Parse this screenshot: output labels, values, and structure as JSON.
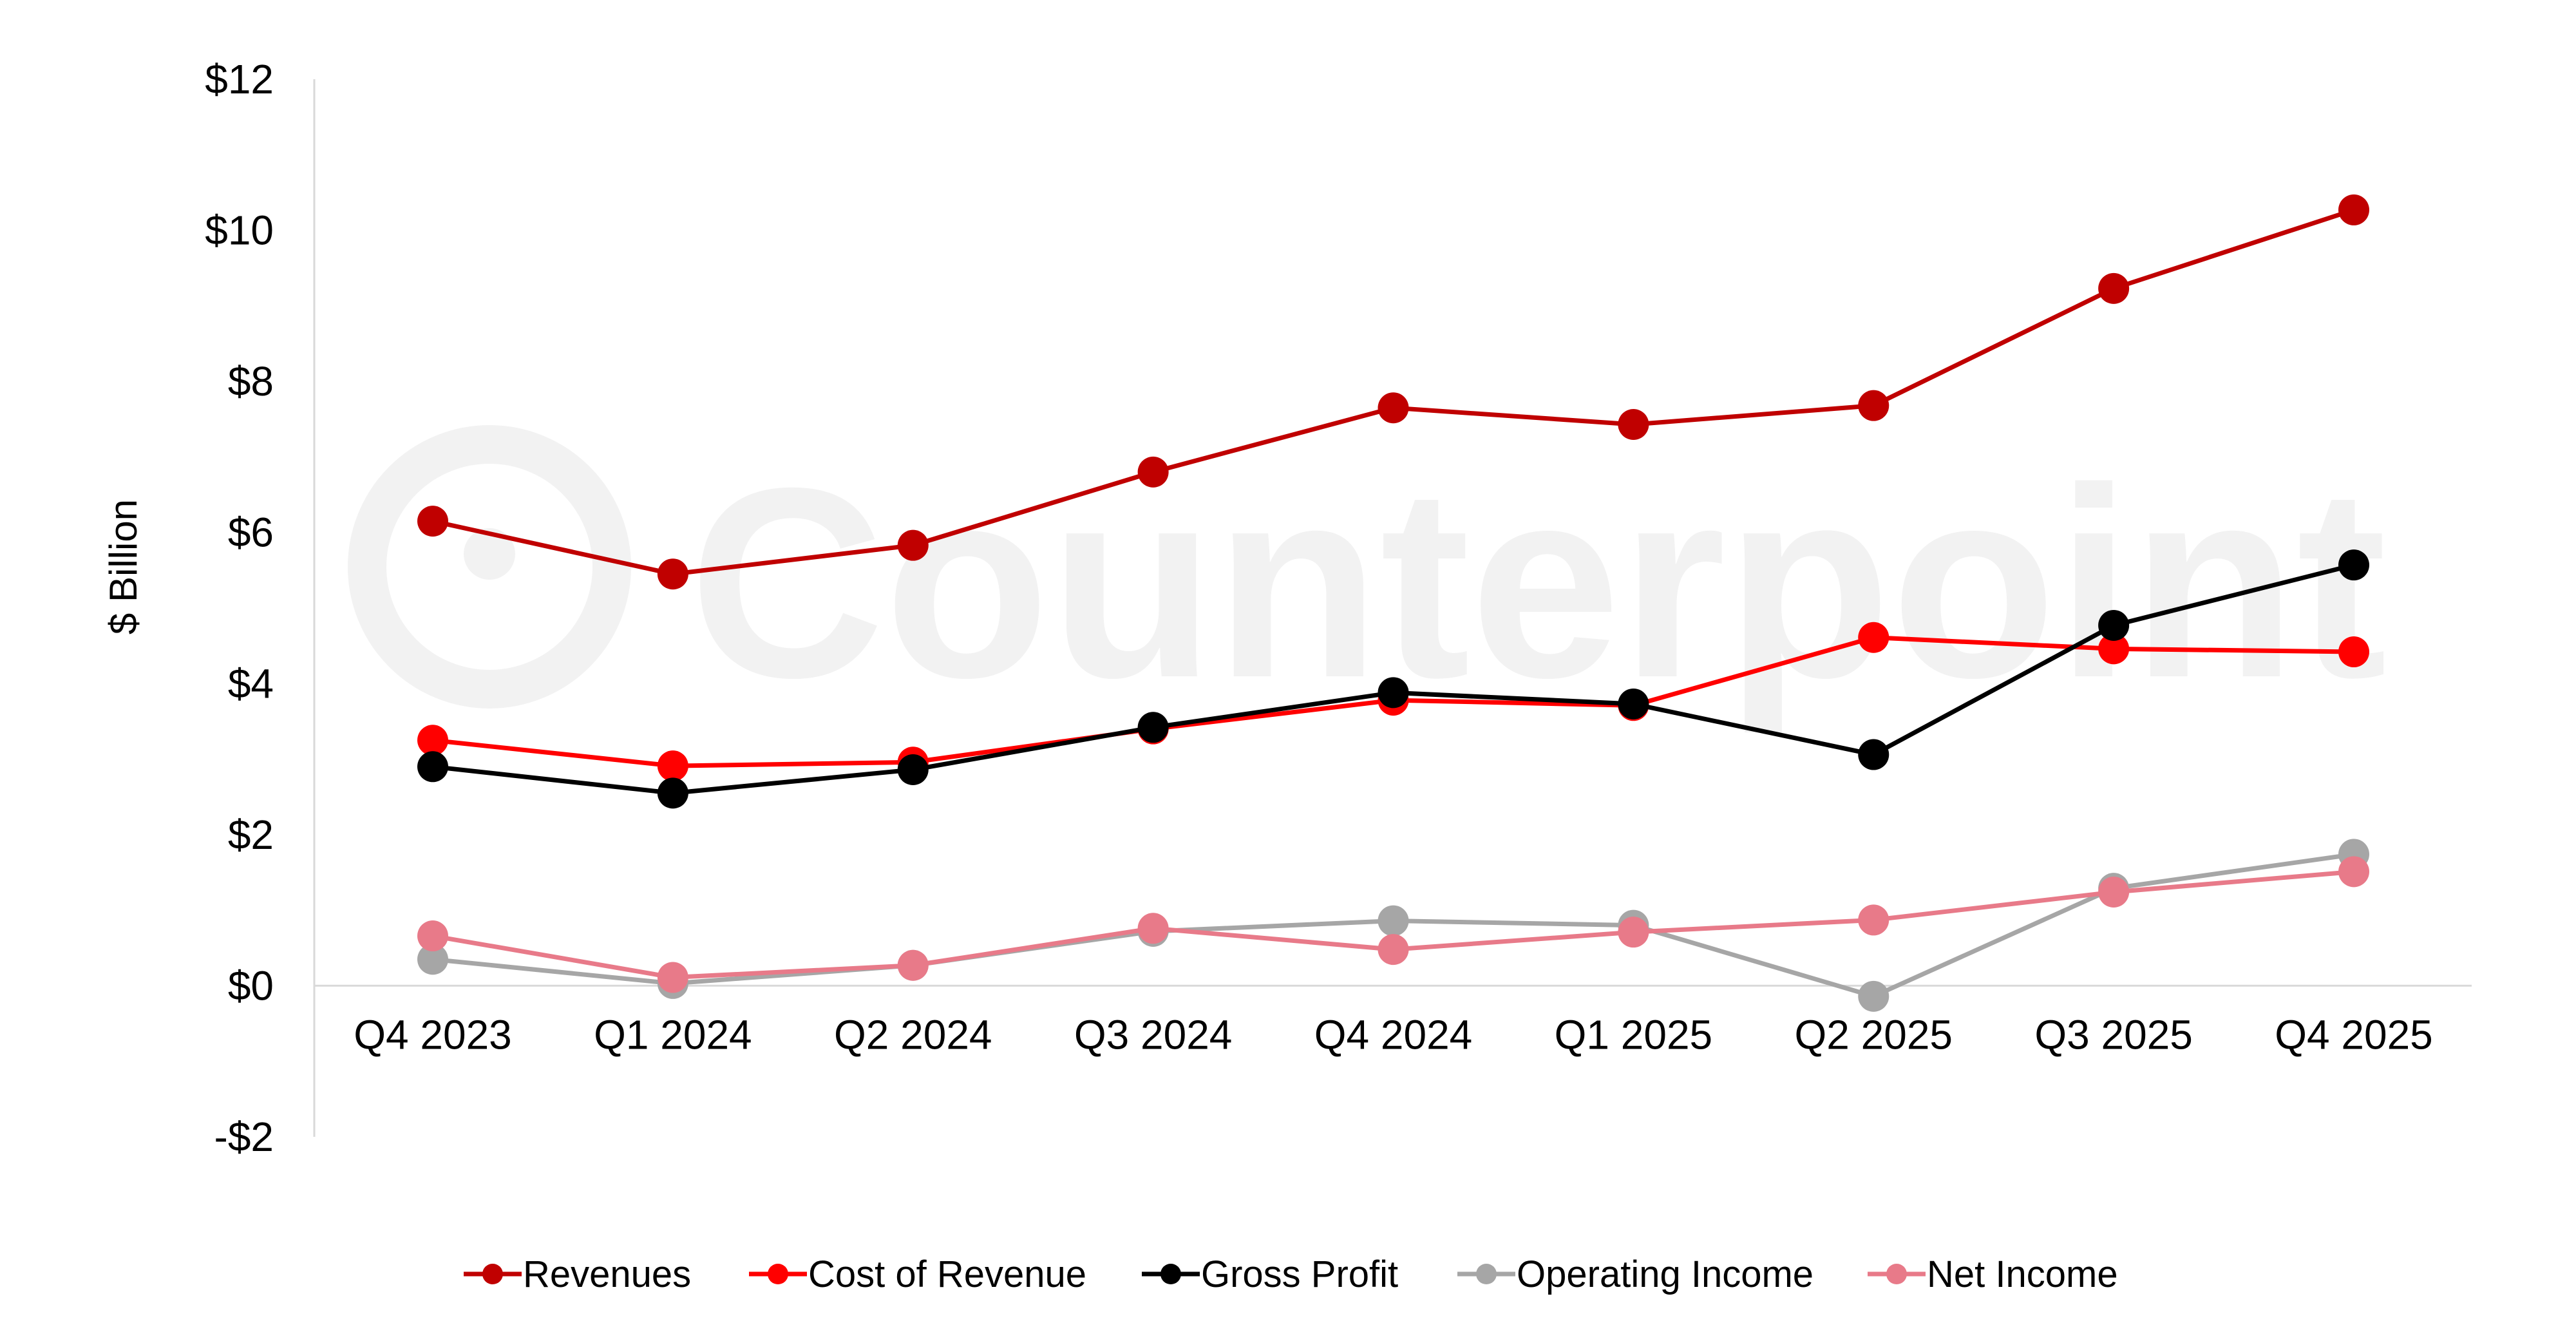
{
  "chart_data": {
    "type": "line",
    "title": "",
    "xlabel": "",
    "ylabel": "$ Billion",
    "categories": [
      "Q4 2023",
      "Q1 2024",
      "Q2 2024",
      "Q3 2024",
      "Q4 2024",
      "Q1 2025",
      "Q2 2025",
      "Q3 2025",
      "Q4 2025"
    ],
    "ylim": [
      -2,
      12
    ],
    "yticks": [
      -2,
      0,
      2,
      4,
      6,
      8,
      10,
      12
    ],
    "ytick_labels": [
      "-$2",
      "$0",
      "$2",
      "$4",
      "$6",
      "$8",
      "$10",
      "$12"
    ],
    "grid": false,
    "legend_position": "bottom",
    "series": [
      {
        "name": "Revenues",
        "color": "#c00000",
        "values": [
          6.15,
          5.45,
          5.83,
          6.8,
          7.65,
          7.43,
          7.68,
          9.23,
          10.27
        ]
      },
      {
        "name": "Cost of Revenue",
        "color": "#ff0000",
        "values": [
          3.25,
          2.91,
          2.96,
          3.4,
          3.78,
          3.71,
          4.61,
          4.46,
          4.42
        ]
      },
      {
        "name": "Gross Profit",
        "color": "#000000",
        "values": [
          2.9,
          2.55,
          2.86,
          3.42,
          3.88,
          3.73,
          3.06,
          4.77,
          5.57
        ]
      },
      {
        "name": "Operating Income",
        "color": "#a6a6a6",
        "values": [
          0.35,
          0.03,
          0.27,
          0.72,
          0.86,
          0.8,
          -0.14,
          1.29,
          1.74
        ]
      },
      {
        "name": "Net Income",
        "color": "#e87a89",
        "values": [
          0.66,
          0.11,
          0.27,
          0.76,
          0.48,
          0.71,
          0.87,
          1.24,
          1.51
        ]
      }
    ]
  },
  "watermark": {
    "text": "Counterpoint",
    "icon": "counterpoint-logo-icon"
  }
}
